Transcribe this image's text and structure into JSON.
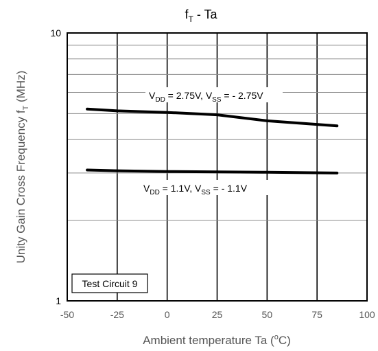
{
  "chart_data": {
    "type": "line",
    "title": {
      "base": "f",
      "sub": "T",
      "rest": " - Ta"
    },
    "xlabel": {
      "base": "Ambient temperature Ta (",
      "sup": "o",
      "rest": "C)"
    },
    "ylabel": {
      "base": "Unity Gain Cross Frequency f",
      "sub": "T",
      "rest": " (MHz)"
    },
    "x_scale": "linear",
    "y_scale": "log",
    "xlim": [
      -50,
      100
    ],
    "ylim": [
      1,
      10
    ],
    "x_ticks": [
      -50,
      -25,
      0,
      25,
      50,
      75,
      100
    ],
    "y_tick_labels": [
      {
        "value": 1,
        "label": "1"
      },
      {
        "value": 10,
        "label": "10"
      }
    ],
    "grid": true,
    "annotation_box": "Test Circuit 9",
    "series": [
      {
        "label_parts": [
          "V",
          "DD",
          " = 2.75V, V",
          "SS",
          " = - 2.75V"
        ],
        "x": [
          -40,
          -25,
          0,
          25,
          50,
          85
        ],
        "y": [
          5.2,
          5.12,
          5.05,
          4.95,
          4.7,
          4.5
        ]
      },
      {
        "label_parts": [
          "V",
          "DD",
          " = 1.1V, V",
          "SS",
          " = - 1.1V"
        ],
        "x": [
          -40,
          -25,
          0,
          25,
          50,
          85
        ],
        "y": [
          3.08,
          3.06,
          3.04,
          3.03,
          3.02,
          3.0
        ]
      }
    ]
  }
}
